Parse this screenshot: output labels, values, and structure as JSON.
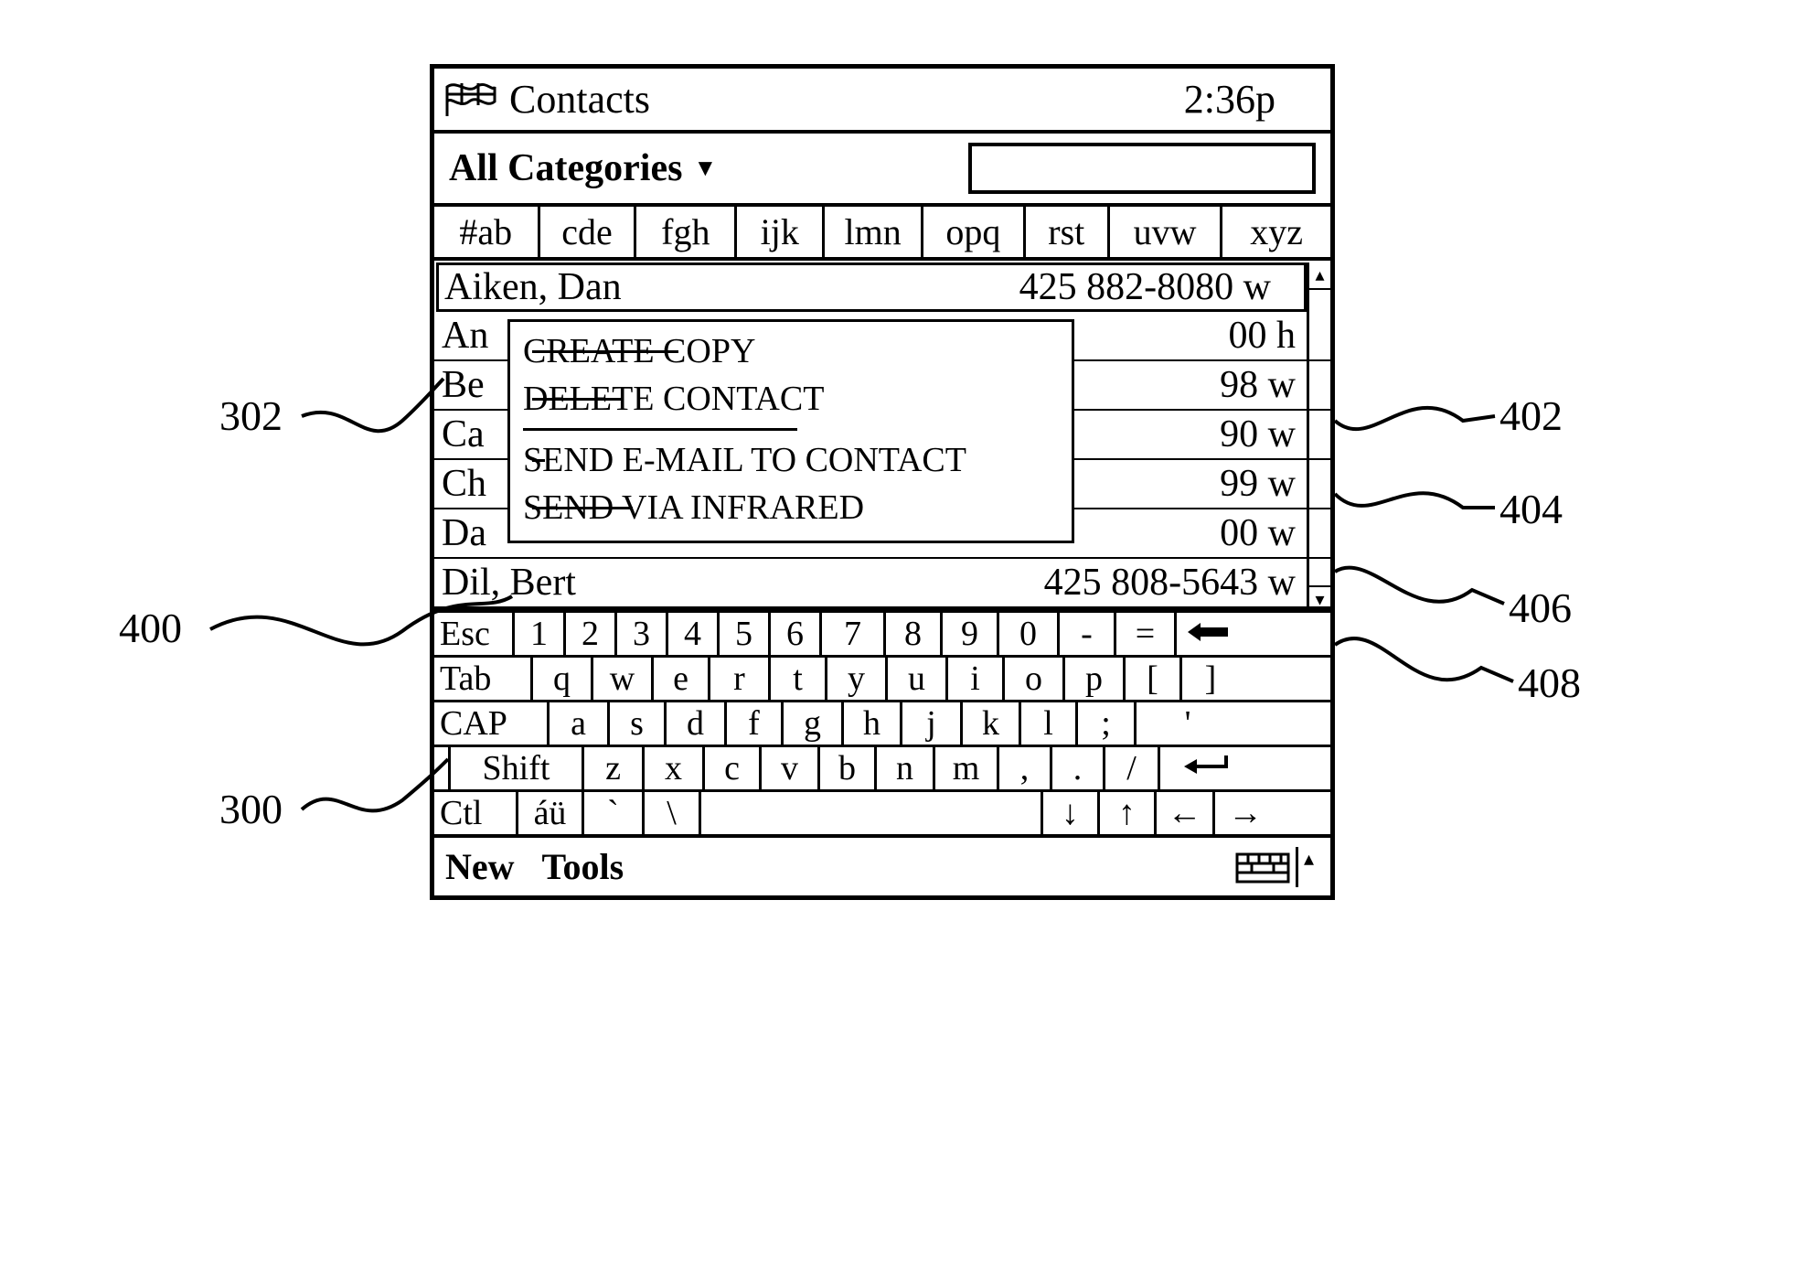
{
  "titlebar": {
    "title": "Contacts",
    "time": "2:36p"
  },
  "category": {
    "label": "All Categories",
    "dropdown_glyph": "▼"
  },
  "alpha_tabs": [
    "#ab",
    "cde",
    "fgh",
    "ijk",
    "lmn",
    "opq",
    "rst",
    "uvw",
    "xyz"
  ],
  "alpha_tab_widths_pct": [
    11.8,
    10.8,
    11.2,
    9.8,
    11.0,
    11.4,
    9.4,
    12.6,
    12.0
  ],
  "contacts": [
    {
      "name": "Aiken, Dan",
      "phone": "425 882-8080 w",
      "selected": true
    },
    {
      "name": "An",
      "phone": "00 h"
    },
    {
      "name": "Be",
      "phone": "98 w"
    },
    {
      "name": "Ca",
      "phone": "90 w"
    },
    {
      "name": "Ch",
      "phone": "99 w"
    },
    {
      "name": "Da",
      "phone": "00 w"
    },
    {
      "name": "Dil, Bert",
      "phone": "425 808-5643 w"
    }
  ],
  "context_menu": {
    "items_top": [
      "CREATE COPY",
      "DELETE CONTACT"
    ],
    "items_bottom": [
      "SEND E-MAIL TO CONTACT",
      "SEND VIA INFRARED"
    ]
  },
  "keyboard": {
    "rows": [
      {
        "keys": [
          "Esc",
          "1",
          "2",
          "3",
          "4",
          "5",
          "6",
          "7",
          "8",
          "9",
          "0",
          "-",
          "="
        ],
        "widths": [
          88,
          56,
          56,
          56,
          56,
          56,
          56,
          70,
          62,
          62,
          66,
          62,
          66
        ],
        "trail_icon": "backspace",
        "trail_w": 68,
        "align0": true
      },
      {
        "keys": [
          "Tab",
          "q",
          "w",
          "e",
          "r",
          "t",
          "y",
          "u",
          "i",
          "o",
          "p",
          "[",
          "]"
        ],
        "widths": [
          108,
          66,
          66,
          62,
          66,
          62,
          66,
          66,
          62,
          66,
          66,
          62,
          62
        ],
        "align0": true
      },
      {
        "keys": [
          "CAP",
          "a",
          "s",
          "d",
          "f",
          "g",
          "h",
          "j",
          "k",
          "l",
          ";",
          "'"
        ],
        "widths": [
          126,
          66,
          62,
          66,
          62,
          66,
          64,
          66,
          64,
          62,
          64,
          112
        ],
        "align0": true
      },
      {
        "keys": [
          "Shift",
          "z",
          "x",
          "c",
          "v",
          "b",
          "n",
          "m",
          ",",
          ".",
          "/"
        ],
        "widths": [
          146,
          66,
          66,
          62,
          64,
          62,
          64,
          70,
          58,
          58,
          60
        ],
        "trail_icon": "enter",
        "trail_w": 104,
        "lead_pad": 18
      },
      {
        "keys": [
          "Ctl",
          "áü",
          "`",
          "\\",
          "",
          "↓",
          "↑",
          "←",
          "→"
        ],
        "widths": [
          92,
          72,
          66,
          62,
          374,
          62,
          62,
          64,
          66
        ],
        "align0": true
      }
    ]
  },
  "bottombar": {
    "new": "New",
    "tools": "Tools"
  },
  "scroll": {
    "up_glyph": "▴",
    "down_glyph": "▾"
  },
  "callouts": {
    "c302": "302",
    "c400": "400",
    "c300": "300",
    "c402": "402",
    "c404": "404",
    "c406": "406",
    "c408": "408"
  },
  "colors": {
    "fg": "#000000",
    "bg": "#ffffff",
    "border": "#000000"
  }
}
